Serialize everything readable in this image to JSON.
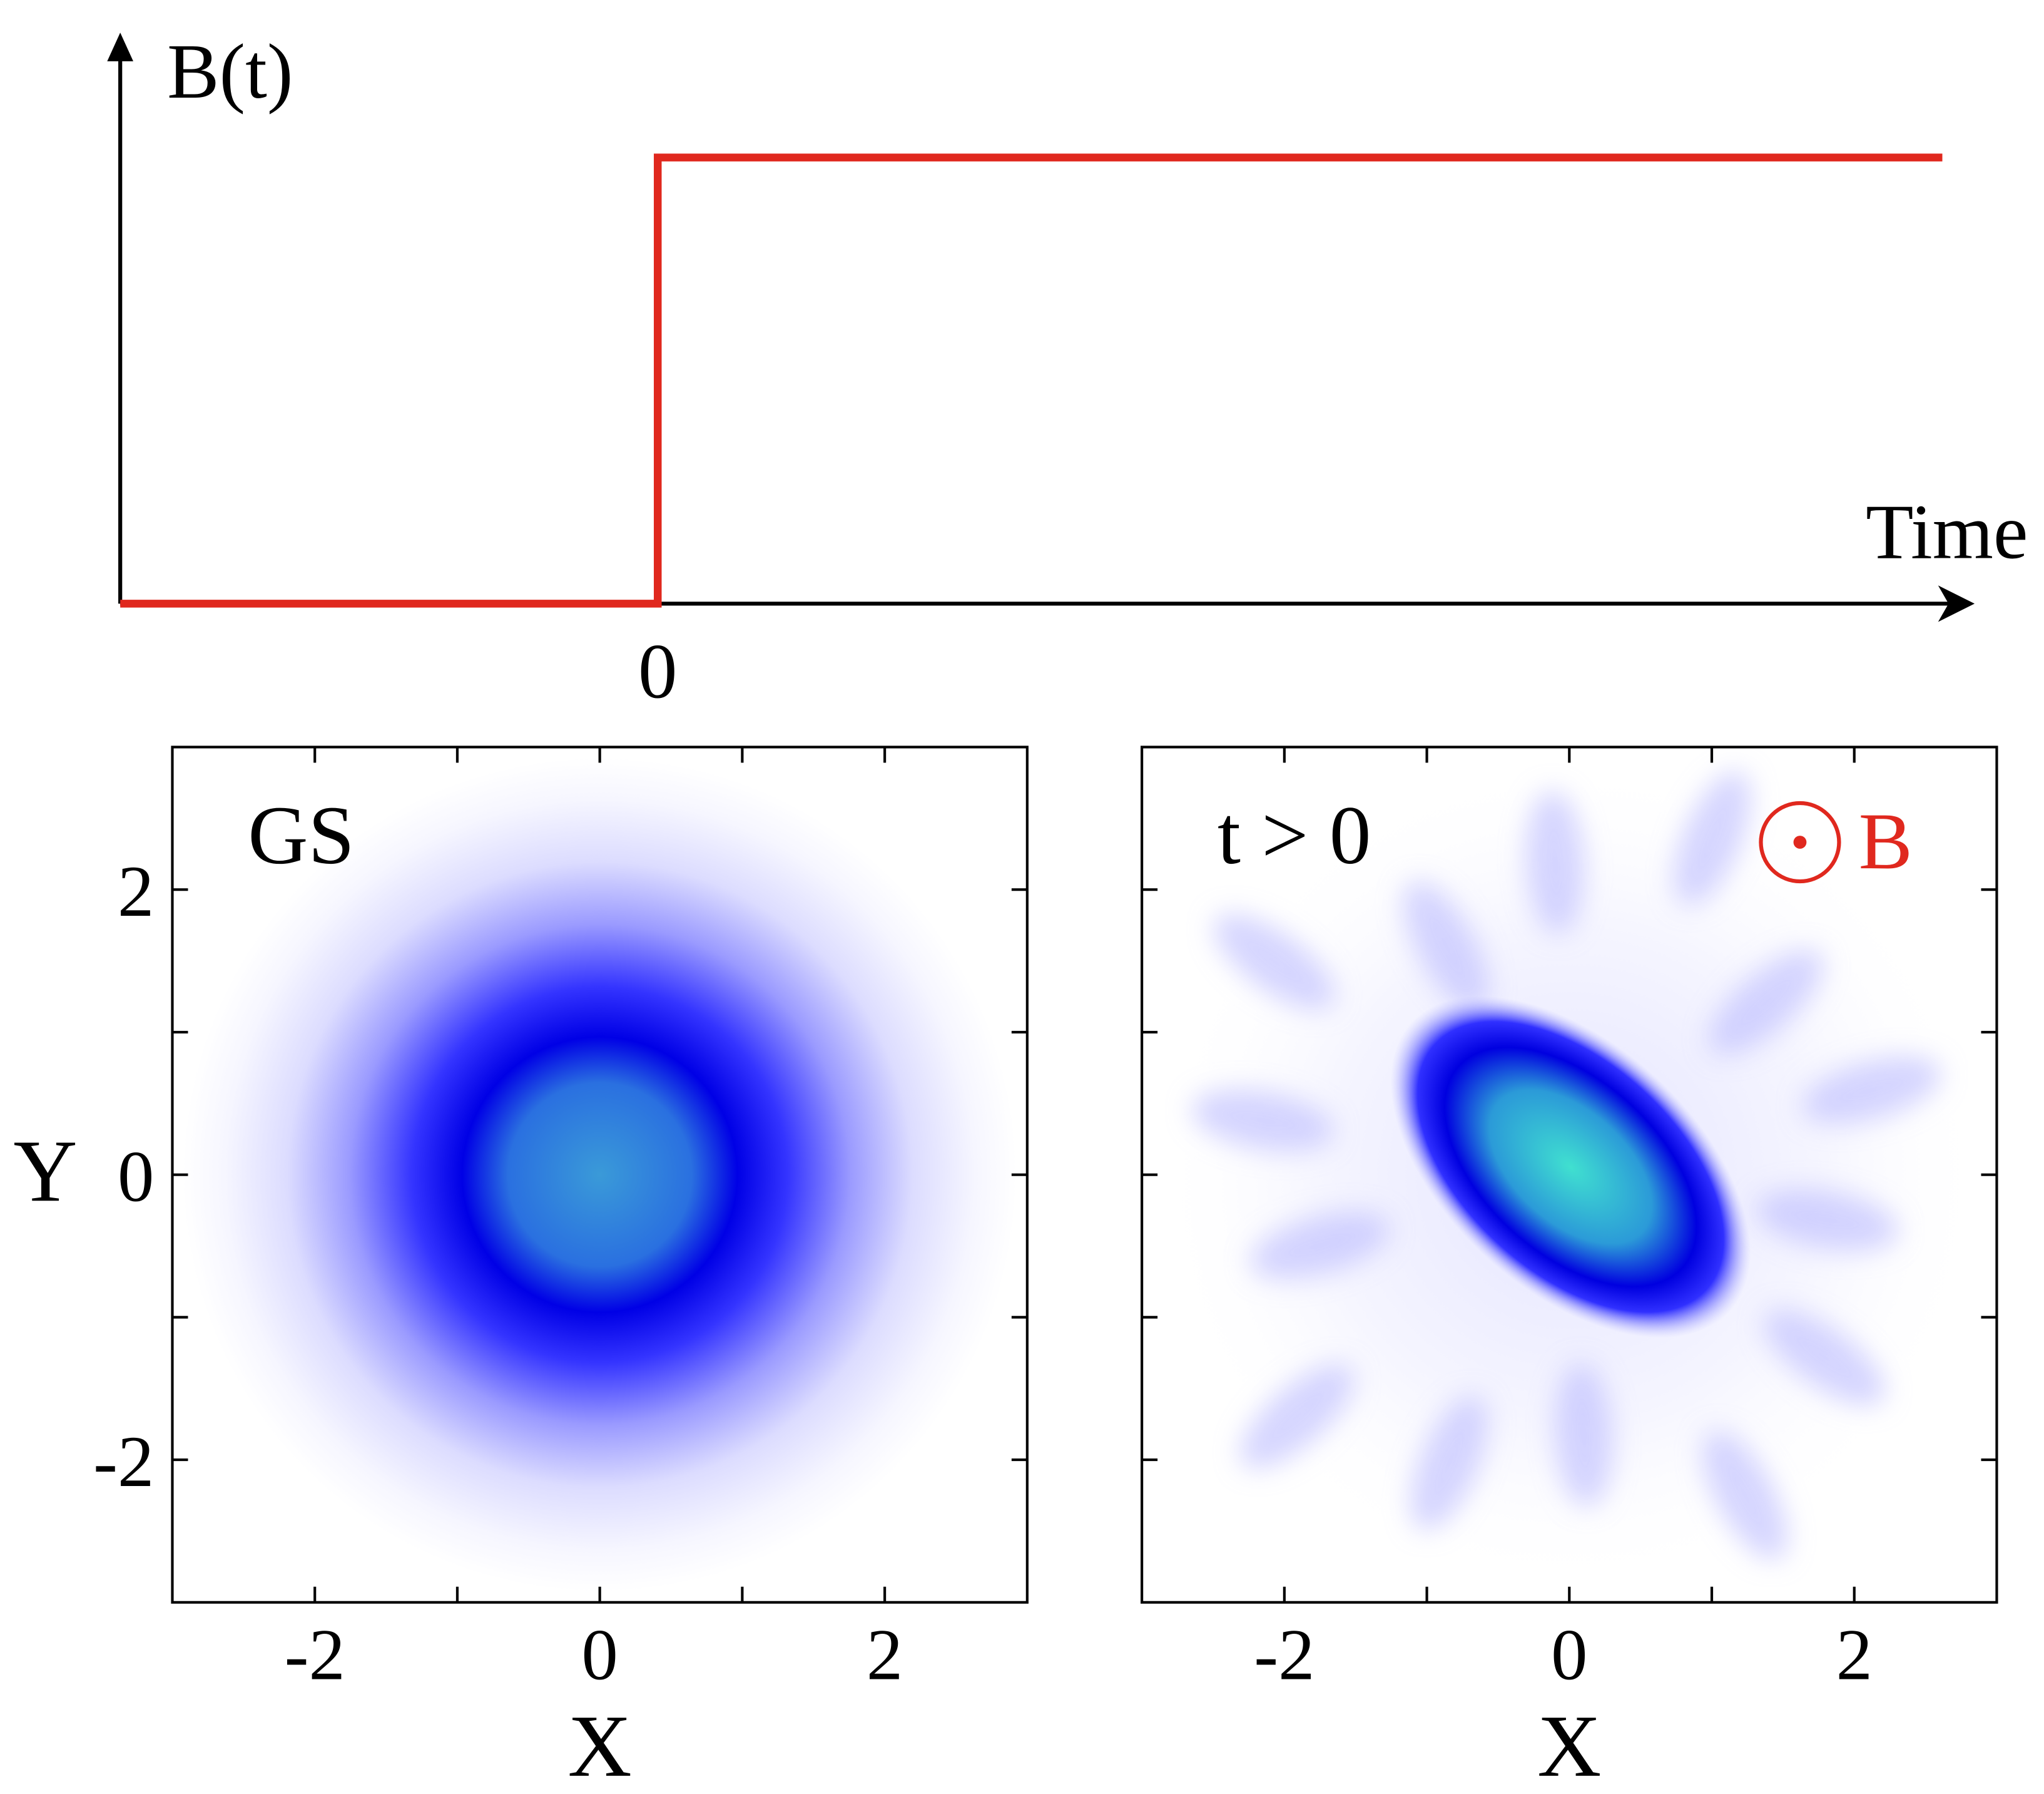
{
  "chart_data": [
    {
      "type": "line",
      "ylabel": "B(t)",
      "xlabel": "Time",
      "x": [
        -1,
        0,
        0,
        2.39
      ],
      "values": [
        0,
        0,
        1,
        1
      ],
      "color": "#e0281e",
      "xlim": [
        -1,
        2.45
      ],
      "ylim": [
        0,
        1.28
      ],
      "xticks": [
        0
      ]
    },
    {
      "type": "heatmap",
      "title": "GS",
      "xlabel": "X",
      "ylabel": "Y",
      "xlim": [
        -3,
        3
      ],
      "ylim": [
        -3,
        3
      ],
      "xticks": [
        -2,
        0,
        2
      ],
      "yticks": [
        -2,
        0,
        2
      ],
      "xminor": [
        -1,
        1
      ],
      "yminor": [
        -1,
        1
      ]
    },
    {
      "type": "heatmap",
      "title": "t > 0",
      "xlabel": "X",
      "annotation": "B",
      "annotation_color": "#e0281e",
      "xlim": [
        -3,
        3
      ],
      "ylim": [
        -3,
        3
      ],
      "xticks": [
        -2,
        0,
        2
      ],
      "yticks": [
        -2,
        0,
        2
      ],
      "xminor": [
        -1,
        1
      ],
      "yminor": [
        -1,
        1
      ]
    }
  ]
}
